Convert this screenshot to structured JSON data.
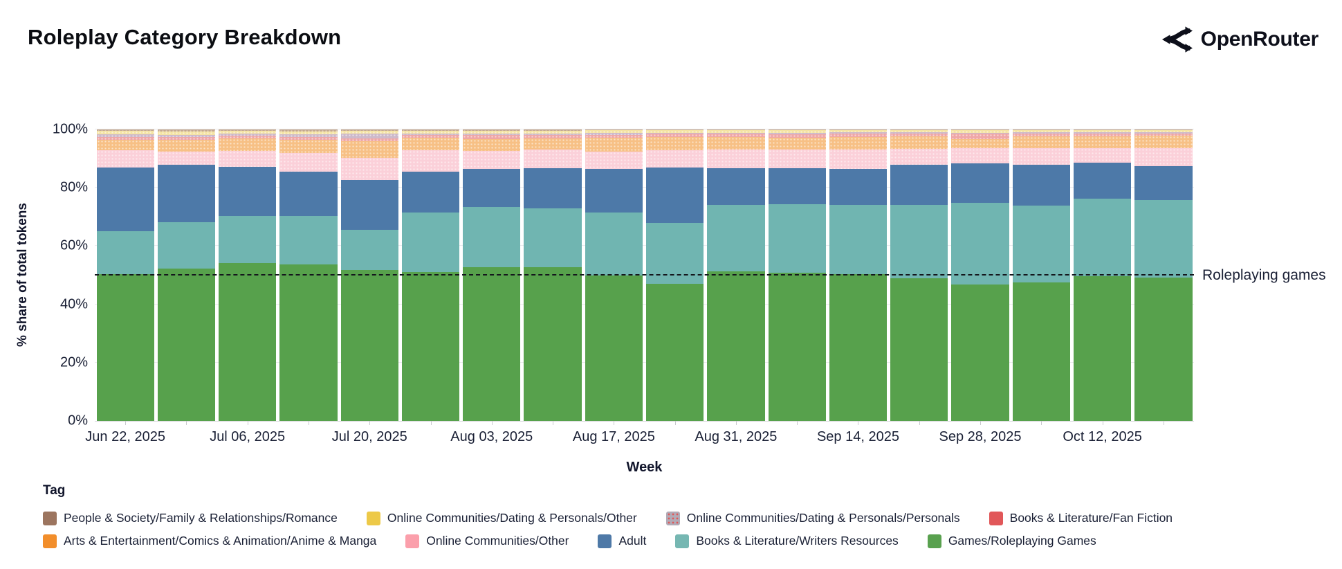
{
  "header": {
    "title": "Roleplay Category Breakdown",
    "logo_text": "OpenRouter"
  },
  "chart_data": {
    "type": "stacked_bar_percent",
    "title": "Roleplay Category Breakdown",
    "xlabel": "Week",
    "ylabel": "% share of total tokens",
    "ylim": [
      0,
      100
    ],
    "grid": "horizontal",
    "n_bars": 18,
    "bar_unit": "week",
    "y_ticks": [
      {
        "label": "0%",
        "value": 0
      },
      {
        "label": "20%",
        "value": 20
      },
      {
        "label": "40%",
        "value": 40
      },
      {
        "label": "60%",
        "value": 60
      },
      {
        "label": "80%",
        "value": 80
      },
      {
        "label": "100%",
        "value": 100
      }
    ],
    "x_ticks": [
      {
        "label": "Jun 22, 2025",
        "bar_index": 0
      },
      {
        "label": "Jul 06, 2025",
        "bar_index": 2
      },
      {
        "label": "Jul 20, 2025",
        "bar_index": 4
      },
      {
        "label": "Aug 03, 2025",
        "bar_index": 6
      },
      {
        "label": "Aug 17, 2025",
        "bar_index": 8
      },
      {
        "label": "Aug 31, 2025",
        "bar_index": 10
      },
      {
        "label": "Sep 14, 2025",
        "bar_index": 12
      },
      {
        "label": "Sep 28, 2025",
        "bar_index": 14
      },
      {
        "label": "Oct 12, 2025",
        "bar_index": 16
      }
    ],
    "annotation": {
      "label": "Roleplaying games",
      "y": 50,
      "style": "dashed"
    },
    "series": [
      {
        "key": "games-roleplaying-games",
        "name": "Games/Roleplaying Games",
        "color": "#57A14C",
        "patterned": false,
        "values": [
          50.3,
          52.2,
          54.2,
          53.8,
          51.9,
          51.0,
          52.7,
          52.7,
          50.0,
          47.0,
          51.2,
          50.8,
          50.4,
          49.0,
          46.9,
          47.4,
          49.6,
          49.2
        ]
      },
      {
        "key": "books-literature-writers-resources",
        "name": "Books & Literature/Writers Resources",
        "color": "#70B5B1",
        "patterned": false,
        "values": [
          14.9,
          16.0,
          16.2,
          16.4,
          13.7,
          20.4,
          20.6,
          20.2,
          21.6,
          21.0,
          22.8,
          23.5,
          23.6,
          25.2,
          28.0,
          26.4,
          26.7,
          26.6
        ]
      },
      {
        "key": "adult",
        "name": "Adult",
        "color": "#4D79A8",
        "patterned": false,
        "values": [
          21.8,
          19.8,
          16.8,
          15.4,
          17.1,
          14.0,
          13.1,
          13.9,
          14.8,
          19.0,
          12.6,
          12.5,
          12.5,
          13.6,
          13.5,
          14.2,
          12.3,
          11.5
        ]
      },
      {
        "key": "online-communities-other",
        "name": "Online Communities/Other",
        "color": "#FBD0D9",
        "patterned": true,
        "values": [
          5.9,
          4.4,
          5.5,
          6.3,
          7.6,
          7.6,
          6.3,
          6.4,
          5.9,
          6.0,
          6.5,
          6.3,
          6.6,
          5.5,
          5.1,
          5.7,
          4.9,
          6.4
        ]
      },
      {
        "key": "arts-entertainment-comics-animation-anime-manga",
        "name": "Arts & Entertainment/Comics & Animation/Anime & Manga",
        "color": "#F7C085",
        "patterned": true,
        "values": [
          3.6,
          4.0,
          4.2,
          4.6,
          5.6,
          4.1,
          4.0,
          3.7,
          4.9,
          4.3,
          4.4,
          4.1,
          4.4,
          4.4,
          3.2,
          4.0,
          4.1,
          4.2
        ]
      },
      {
        "key": "books-literature-fan-fiction",
        "name": "Books & Literature/Fan Fiction",
        "color": "#EFA7A7",
        "patterned": true,
        "values": [
          0.9,
          1.0,
          0.9,
          0.9,
          1.0,
          1.1,
          1.4,
          1.2,
          1.0,
          1.2,
          1.0,
          1.1,
          1.0,
          0.9,
          1.8,
          1.0,
          1.1,
          0.8
        ]
      },
      {
        "key": "online-communities-dating-personals-personals",
        "name": "Online Communities/Dating & Personals/Personals",
        "color": "#CDB9CA",
        "patterned": true,
        "values": [
          1.0,
          0.8,
          0.7,
          0.9,
          1.6,
          0.5,
          0.5,
          0.5,
          0.6,
          0.4,
          0.4,
          0.6,
          0.5,
          0.4,
          0.4,
          0.4,
          0.4,
          0.4
        ]
      },
      {
        "key": "online-communities-dating-personals-other",
        "name": "Online Communities/Dating & Personals/Other",
        "color": "#F4E3A3",
        "patterned": true,
        "values": [
          1.1,
          1.2,
          1.0,
          1.1,
          1.1,
          0.9,
          0.9,
          1.0,
          0.9,
          0.8,
          0.8,
          0.8,
          0.8,
          0.7,
          0.8,
          0.7,
          0.7,
          0.7
        ]
      },
      {
        "key": "people-society-family-relationships-romance",
        "name": "People & Society/Family & Relationships/Romance",
        "color": "#C3A78F",
        "patterned": true,
        "values": [
          0.5,
          0.6,
          0.5,
          0.6,
          0.4,
          0.4,
          0.5,
          0.4,
          0.3,
          0.3,
          0.3,
          0.3,
          0.2,
          0.3,
          0.3,
          0.2,
          0.2,
          0.2
        ]
      }
    ]
  },
  "legend": {
    "title": "Tag",
    "rows": [
      [
        {
          "label": "People & Society/Family & Relationships/Romance",
          "color": "#9C755F",
          "pattern": "solid"
        },
        {
          "label": "Online Communities/Dating & Personals/Other",
          "color": "#EDC948",
          "pattern": "solid"
        },
        {
          "label": "Online Communities/Dating & Personals/Personals",
          "color": "#B2ABB7",
          "pattern": "red-dots"
        },
        {
          "label": "Books & Literature/Fan Fiction",
          "color": "#E15759",
          "pattern": "solid"
        }
      ],
      [
        {
          "label": "Arts & Entertainment/Comics & Animation/Anime & Manga",
          "color": "#F28E2B",
          "pattern": "solid"
        },
        {
          "label": "Online Communities/Other",
          "color": "#FB9FAB",
          "pattern": "solid"
        },
        {
          "label": "Adult",
          "color": "#4E79A7",
          "pattern": "solid"
        },
        {
          "label": "Books & Literature/Writers Resources",
          "color": "#76B7B2",
          "pattern": "solid"
        },
        {
          "label": "Games/Roleplaying Games",
          "color": "#59A14F",
          "pattern": "solid"
        }
      ]
    ]
  }
}
